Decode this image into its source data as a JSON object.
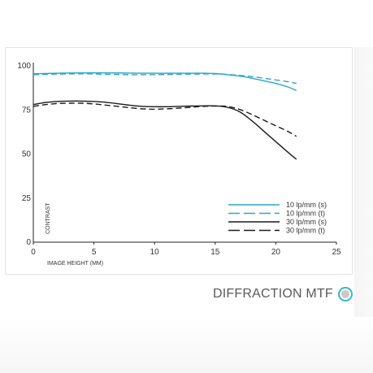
{
  "caption": "DIFFRACTION MTF",
  "colors": {
    "sagittal_blue": "#2aa6c9",
    "black": "#1a1a1a",
    "accent": "#37b7cf"
  },
  "chart_data": {
    "type": "line",
    "xlabel": "IMAGE HEIGHT (MM)",
    "ylabel": "CONTRAST",
    "xlim": [
      0,
      25
    ],
    "ylim": [
      0,
      100
    ],
    "xticks": [
      0,
      5,
      10,
      15,
      20,
      25
    ],
    "yticks": [
      0,
      25,
      50,
      75,
      100
    ],
    "grid": false,
    "legend_position": "bottom-right",
    "series": [
      {
        "name": "10 lp/mm (s)",
        "color": "#2aa6c9",
        "dash": "solid",
        "x": [
          0,
          2,
          4,
          6,
          8,
          10,
          12,
          14,
          15,
          16,
          17,
          18,
          19,
          20,
          21,
          21.7
        ],
        "y": [
          95.5,
          95.8,
          96,
          96,
          95.9,
          95.8,
          95.8,
          95.8,
          95.6,
          95,
          94.2,
          93,
          91.5,
          90,
          88,
          86
        ]
      },
      {
        "name": "10 lp/mm (t)",
        "color": "#2aa6c9",
        "dash": "dashed",
        "x": [
          0,
          2,
          4,
          6,
          8,
          10,
          12,
          14,
          15,
          16,
          17,
          18,
          19,
          20,
          21,
          21.7
        ],
        "y": [
          95,
          95.3,
          95.5,
          95.2,
          95,
          95,
          95.2,
          95.4,
          95.4,
          95.1,
          94.6,
          93.9,
          93,
          92,
          91,
          90
        ]
      },
      {
        "name": "30 lp/mm (s)",
        "color": "#1a1a1a",
        "dash": "solid",
        "x": [
          0,
          1,
          2,
          3,
          4,
          5,
          6,
          7,
          8,
          9,
          10,
          11,
          12,
          13,
          14,
          15,
          16,
          17,
          18,
          19,
          20,
          21,
          21.7
        ],
        "y": [
          78,
          79.2,
          79.8,
          80,
          80,
          79.8,
          79.3,
          78.5,
          77.6,
          77,
          76.8,
          76.8,
          77,
          77.2,
          77.3,
          77.3,
          76.5,
          74,
          69,
          63,
          57,
          51,
          47
        ]
      },
      {
        "name": "30 lp/mm (t)",
        "color": "#1a1a1a",
        "dash": "dashed",
        "x": [
          0,
          1,
          2,
          3,
          4,
          5,
          6,
          7,
          8,
          9,
          10,
          11,
          12,
          13,
          14,
          15,
          16,
          17,
          18,
          19,
          20,
          21,
          21.7
        ],
        "y": [
          77,
          78,
          78.6,
          78.8,
          78.8,
          78.4,
          77.7,
          77,
          76.2,
          75.6,
          75.4,
          75.6,
          76,
          76.5,
          77,
          77.2,
          77,
          75.3,
          72.5,
          69.2,
          66,
          62.8,
          60
        ]
      }
    ]
  }
}
